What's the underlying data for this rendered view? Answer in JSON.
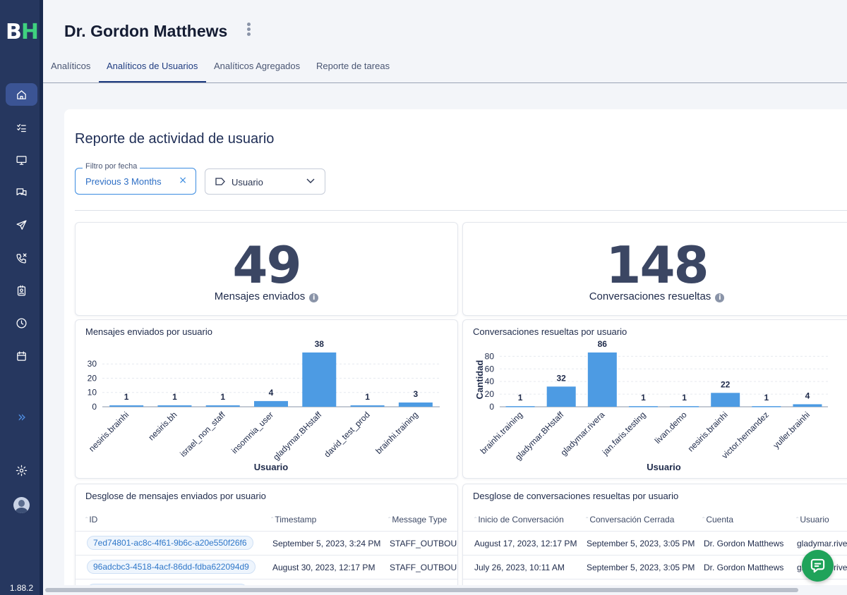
{
  "brand": {
    "b": "B",
    "h": "H"
  },
  "sidebar": {
    "version": "1.88.2",
    "items": [
      {
        "icon": "home-icon"
      },
      {
        "icon": "tasks-icon"
      },
      {
        "icon": "monitor-icon"
      },
      {
        "icon": "chat-icon"
      },
      {
        "icon": "send-icon"
      },
      {
        "icon": "missed-call-icon"
      },
      {
        "icon": "contacts-icon"
      },
      {
        "icon": "clock-icon"
      },
      {
        "icon": "calendar-icon"
      }
    ],
    "expand": "»"
  },
  "header": {
    "title": "Dr. Gordon Matthews"
  },
  "tabs": [
    {
      "label": "Analíticos"
    },
    {
      "label": "Analíticos de Usuarios"
    },
    {
      "label": "Analíticos Agregados"
    },
    {
      "label": "Reporte de tareas"
    }
  ],
  "report": {
    "title": "Reporte de actividad de usuario",
    "date_filter": {
      "legend": "Filtro por fecha",
      "value": "Previous 3 Months",
      "clear": "×"
    },
    "user_select": {
      "label": "Usuario"
    }
  },
  "kpis": [
    {
      "value": "49",
      "label": "Mensajes enviados",
      "info": "i"
    },
    {
      "value": "148",
      "label": "Conversaciones resueltas",
      "info": "i"
    }
  ],
  "chart_data": [
    {
      "type": "bar",
      "title": "Mensajes enviados por usuario",
      "xlabel": "Usuario",
      "ylabel": "",
      "categories": [
        "nesiris.brainhi",
        "nesiris.bh",
        "israel_non_staff",
        "insomnia_user",
        "gladymar.BHstaff",
        "david_test_prod",
        "brainhi.training"
      ],
      "values": [
        1,
        1,
        1,
        4,
        38,
        1,
        3
      ],
      "yticks": [
        0,
        10,
        20,
        30
      ],
      "ylim": [
        0,
        38
      ],
      "color": "#4d9be3",
      "grid": true
    },
    {
      "type": "bar",
      "title": "Conversaciones resueltas por usuario",
      "xlabel": "Usuario",
      "ylabel": "Cantidad",
      "categories": [
        "brainhi.training",
        "gladymar.BHstaff",
        "gladymar.rivera",
        "jan.faris.testing",
        "livan.demo",
        "nesiris.brainhi",
        "victor.hernandez",
        "yuller.brainhi"
      ],
      "values": [
        1,
        32,
        86,
        1,
        1,
        22,
        1,
        4
      ],
      "yticks": [
        0,
        20,
        40,
        60,
        80
      ],
      "ylim": [
        0,
        86
      ],
      "color": "#4d9be3",
      "grid": true
    }
  ],
  "messages_table": {
    "title": "Desglose de mensajes enviados por usuario",
    "columns": [
      "ID",
      "Timestamp",
      "Message Type"
    ],
    "rows": [
      [
        "7ed74801-ac8c-4f61-9b6c-a20e550f26f6",
        "September 5, 2023, 3:24 PM",
        "STAFF_OUTBOUND"
      ],
      [
        "96adcbc3-4518-4acf-86dd-fdba622094d9",
        "August 30, 2023, 12:17 PM",
        "STAFF_OUTBOUND"
      ]
    ]
  },
  "conversations_table": {
    "title": "Desglose de conversaciones resueltas por usuario",
    "columns": [
      "Inicio de Conversación",
      "Conversación Cerrada",
      "Cuenta",
      "Usuario"
    ],
    "rows": [
      [
        "August 17, 2023, 12:17 PM",
        "September 5, 2023, 3:05 PM",
        "Dr. Gordon Matthews",
        "gladymar.rivera"
      ],
      [
        "July 26, 2023, 10:11 AM",
        "September 5, 2023, 3:05 PM",
        "Dr. Gordon Matthews",
        "gladymar.rivera"
      ]
    ]
  },
  "chat_button": {
    "icon": "chat-support-icon"
  }
}
